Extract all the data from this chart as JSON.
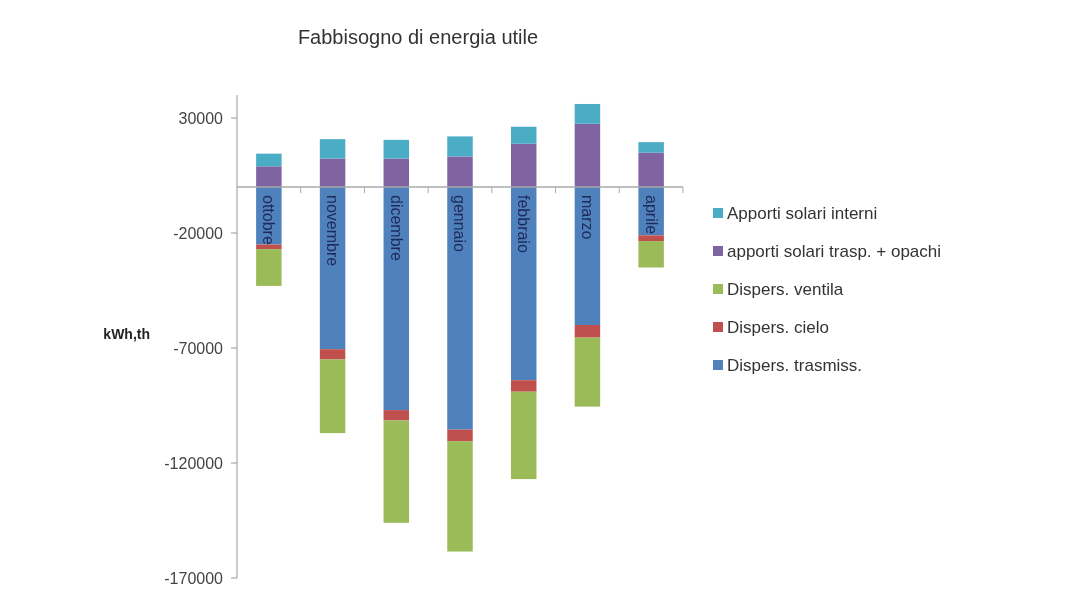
{
  "chart_data": {
    "type": "bar",
    "title": "Fabbisogno di energia utile",
    "ylabel": "kWh,th",
    "stacked": true,
    "categories": [
      "ottobre",
      "novembre",
      "dicembre",
      "gennaio",
      "febbraio",
      "marzo",
      "aprile"
    ],
    "series": [
      {
        "name": "Dispers. trasmiss.",
        "color": "#4f81bd",
        "values": [
          -25000,
          -70500,
          -97000,
          -105500,
          -84000,
          -60000,
          -21000
        ]
      },
      {
        "name": "Dispers. cielo",
        "color": "#c0504d",
        "values": [
          -2000,
          -4500,
          -4500,
          -5000,
          -5000,
          -5500,
          -2500
        ]
      },
      {
        "name": "Dispers. ventila",
        "color": "#9bbb59",
        "values": [
          -16000,
          -32000,
          -44500,
          -48000,
          -38000,
          -30000,
          -11500
        ]
      },
      {
        "name": "apporti solari trasp. + opachi",
        "color": "#8064a2",
        "values": [
          9000,
          12400,
          12400,
          13300,
          18800,
          27500,
          14900
        ]
      },
      {
        "name": "Apporti solari interni",
        "color": "#4bacc6",
        "values": [
          5500,
          8400,
          8100,
          8700,
          7400,
          8600,
          4600
        ]
      }
    ],
    "ylim": [
      -170000,
      40000
    ],
    "yticks": [
      30000,
      -20000,
      -70000,
      -120000,
      -170000
    ],
    "grid": false,
    "legend": "right"
  }
}
